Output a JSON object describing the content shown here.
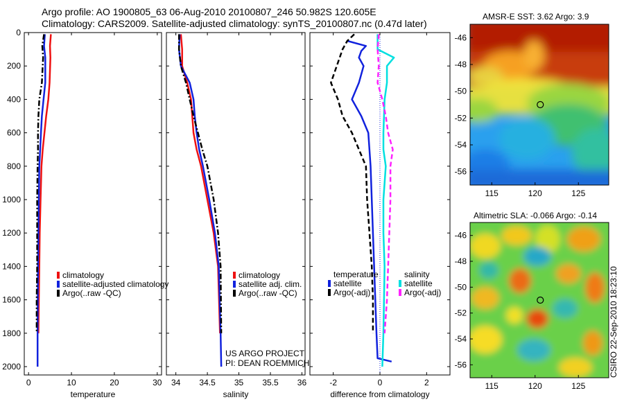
{
  "header": {
    "line1": "Argo profile: AO 1900805_63 06-Aug-2010 20100807_246 50.982S 120.605E",
    "line2": "Climatology: CARS2009. Satellite-adjusted climatology: synTS_20100807.nc (0.47d later)"
  },
  "credit": {
    "project": "US ARGO PROJECT",
    "pi": "PI: DEAN ROEMMICH",
    "stamp": "CSIRO 22-Sep-2010 18:23:10"
  },
  "colors": {
    "climatology": "#ee1111",
    "satellite": "#1122dd",
    "argo": "#000000",
    "sal_satellite": "#00e0e0",
    "sal_argo": "#ff22ff"
  },
  "chart_data": [
    {
      "type": "line",
      "xlabel": "temperature",
      "ylabel": "",
      "xlim": [
        -1,
        31
      ],
      "ylim": [
        2050,
        0
      ],
      "xticks": [
        "0",
        "10",
        "20",
        "30"
      ],
      "yticks": [
        "0",
        "200",
        "400",
        "600",
        "800",
        "1000",
        "1200",
        "1400",
        "1600",
        "1800",
        "2000"
      ],
      "legend": [
        "climatology",
        "satellite-adjusted climatology",
        "Argo(..raw -QC)"
      ],
      "legend_position": "lower-right",
      "series": [
        {
          "name": "climatology",
          "x": [
            5.2,
            5.0,
            5.1,
            4.9,
            4.6,
            4.1,
            3.7,
            3.3,
            3.0,
            2.8,
            2.6,
            2.5,
            2.4,
            2.3
          ],
          "y": [
            10,
            80,
            150,
            300,
            400,
            500,
            600,
            700,
            800,
            1000,
            1200,
            1400,
            1600,
            1800
          ]
        },
        {
          "name": "satellite-adjusted climatology",
          "x": [
            3.8,
            3.6,
            3.9,
            3.9,
            3.5,
            3.1,
            2.9,
            2.7,
            2.5,
            2.4,
            2.3,
            2.2,
            2.1,
            2.1
          ],
          "y": [
            10,
            80,
            150,
            300,
            400,
            500,
            600,
            700,
            800,
            1000,
            1200,
            1400,
            1800,
            2000
          ]
        },
        {
          "name": "Argo(..raw -QC)",
          "x": [
            3.6,
            3.2,
            3.4,
            3.1,
            2.5,
            2.3,
            2.2,
            2.2,
            2.1,
            2.0,
            2.0,
            2.0,
            1.9,
            1.9
          ],
          "y": [
            10,
            80,
            150,
            300,
            400,
            500,
            600,
            700,
            800,
            1000,
            1200,
            1400,
            1600,
            1800
          ]
        }
      ]
    },
    {
      "type": "line",
      "xlabel": "salinity",
      "ylabel": "",
      "xlim": [
        33.85,
        36.05
      ],
      "ylim": [
        2050,
        0
      ],
      "xticks": [
        "34",
        "34.5",
        "35",
        "35.5",
        "36"
      ],
      "legend": [
        "climatology",
        "satellite adj. clim.",
        "Argo(..raw -QC)"
      ],
      "legend_position": "lower-right",
      "series": [
        {
          "name": "climatology",
          "x": [
            34.08,
            34.1,
            34.1,
            34.18,
            34.24,
            34.26,
            34.28,
            34.33,
            34.4,
            34.5,
            34.6,
            34.67,
            34.7
          ],
          "y": [
            10,
            100,
            200,
            300,
            400,
            500,
            600,
            700,
            800,
            1000,
            1200,
            1400,
            1800
          ]
        },
        {
          "name": "satellite adj. clim.",
          "x": [
            34.06,
            34.05,
            34.08,
            34.22,
            34.28,
            34.3,
            34.33,
            34.37,
            34.43,
            34.53,
            34.62,
            34.68,
            34.71,
            34.72
          ],
          "y": [
            10,
            100,
            200,
            300,
            400,
            500,
            600,
            700,
            800,
            1000,
            1200,
            1400,
            1800,
            2000
          ]
        },
        {
          "name": "Argo(..raw -QC)",
          "x": [
            34.05,
            34.05,
            34.08,
            34.16,
            34.22,
            34.28,
            34.35,
            34.42,
            34.5,
            34.6,
            34.67,
            34.71,
            34.72
          ],
          "y": [
            10,
            100,
            200,
            300,
            400,
            500,
            600,
            700,
            800,
            1000,
            1200,
            1400,
            1800
          ]
        }
      ]
    },
    {
      "type": "line",
      "xlabel": "difference from climatology",
      "ylabel": "",
      "xlim": [
        -3,
        3
      ],
      "ylim": [
        2050,
        0
      ],
      "xticks": [
        "-2",
        "0",
        "2"
      ],
      "legend_groups": [
        {
          "title": "temperature",
          "entries": [
            "satellite",
            "Argo(-adj)"
          ]
        },
        {
          "title": "salinity",
          "entries": [
            "satellite",
            "Argo(-adj)"
          ]
        }
      ],
      "legend_position": "lower",
      "series": [
        {
          "name": "temperature satellite",
          "x": [
            -1.4,
            -0.6,
            -0.8,
            -0.9,
            -0.7,
            -0.9,
            -1.2,
            -0.8,
            -0.5,
            -0.4,
            -0.35,
            -0.3,
            -0.25,
            -0.2,
            -0.15,
            -0.1,
            0.5
          ],
          "y": [
            50,
            80,
            110,
            150,
            200,
            300,
            400,
            500,
            600,
            800,
            1000,
            1200,
            1400,
            1600,
            1800,
            1950,
            1970
          ]
        },
        {
          "name": "temperature Argo(-adj)",
          "x": [
            -1.1,
            -1.4,
            -1.6,
            -2.1,
            -1.8,
            -1.6,
            -1.2,
            -0.9,
            -0.6,
            -0.55,
            -0.45,
            -0.35,
            -0.3,
            -0.3
          ],
          "y": [
            10,
            50,
            100,
            300,
            400,
            500,
            600,
            700,
            800,
            1000,
            1200,
            1400,
            1600,
            1800
          ]
        },
        {
          "name": "salinity satellite",
          "x": [
            -0.1,
            -0.1,
            0.6,
            0.3,
            0.3,
            0.2,
            0.15,
            0.15,
            0.25,
            0.15,
            0.15,
            0.2,
            0.15,
            0.1
          ],
          "y": [
            10,
            100,
            150,
            200,
            300,
            400,
            600,
            700,
            800,
            1000,
            1200,
            1400,
            1800,
            2000
          ]
        },
        {
          "name": "salinity Argo(-adj)",
          "x": [
            -0.05,
            -0.1,
            -0.05,
            -0.1,
            0.1,
            0.25,
            0.35,
            0.55,
            0.45,
            0.45,
            0.4,
            0.35,
            0.3,
            0.2
          ],
          "y": [
            10,
            100,
            200,
            300,
            400,
            500,
            600,
            700,
            800,
            1000,
            1200,
            1400,
            1600,
            1800
          ]
        }
      ]
    },
    {
      "type": "heatmap",
      "title": "AMSR-E SST: 3.62 Argo: 3.9",
      "xticks": [
        "115",
        "120",
        "125"
      ],
      "yticks": [
        "-46",
        "-48",
        "-50",
        "-52",
        "-54",
        "-56"
      ],
      "xlim": [
        112.5,
        128.5
      ],
      "ylim": [
        -57,
        -45
      ],
      "marker": {
        "x": 120.6,
        "y": -51.0
      }
    },
    {
      "type": "heatmap",
      "title": "Altimetric SLA: -0.066 Argo: -0.14",
      "xticks": [
        "115",
        "120",
        "125"
      ],
      "yticks": [
        "-46",
        "-48",
        "-50",
        "-52",
        "-54",
        "-56"
      ],
      "xlim": [
        112.5,
        128.5
      ],
      "ylim": [
        -57,
        -45
      ],
      "marker": {
        "x": 120.6,
        "y": -51.0
      }
    }
  ]
}
